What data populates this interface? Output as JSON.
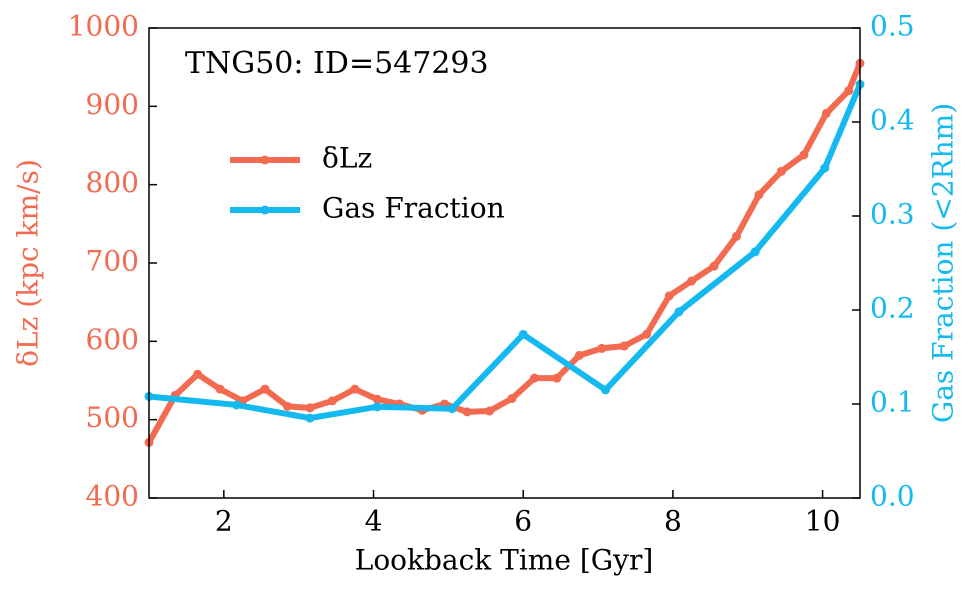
{
  "chart_data": {
    "type": "line",
    "annotation": "TNG50: ID=547293",
    "x_label": "Lookback Time [Gyr]",
    "y_label": "δLz (kpc km/s)",
    "y2_label": "Gas Fraction (<2Rhm)",
    "xlim": [
      1,
      10.5
    ],
    "xticks": [
      2,
      4,
      6,
      8,
      10
    ],
    "ylim": [
      400,
      1000
    ],
    "yticks": [
      400,
      500,
      600,
      700,
      800,
      900,
      1000
    ],
    "y2lim": [
      0,
      0.5
    ],
    "y2ticks": [
      {
        "value": 0,
        "label": "0.0"
      },
      0.1,
      0.2,
      0.3,
      0.4,
      0.5
    ],
    "y_color": "#f26b50",
    "y2_color": "#13b9ef",
    "series": [
      {
        "name": "δLz",
        "color": "#f26b50",
        "axis": "y",
        "x": [
          1.0,
          1.35,
          1.65,
          1.95,
          2.25,
          2.55,
          2.85,
          3.15,
          3.45,
          3.75,
          4.05,
          4.35,
          4.65,
          4.95,
          5.25,
          5.55,
          5.85,
          6.15,
          6.45,
          6.75,
          7.05,
          7.35,
          7.65,
          7.95,
          8.25,
          8.55,
          8.85,
          9.15,
          9.45,
          9.75,
          10.05,
          10.35,
          10.5
        ],
        "values": [
          471,
          531,
          558,
          539,
          524,
          539,
          517,
          515,
          524,
          539,
          526,
          520,
          512,
          520,
          510,
          511,
          527,
          553,
          553,
          582,
          591,
          594,
          609,
          658,
          677,
          696,
          734,
          787,
          817,
          838,
          891,
          920,
          955
        ]
      },
      {
        "name": "Gas Fraction",
        "color": "#13b9ef",
        "axis": "y2",
        "x": [
          1.0,
          2.17,
          3.15,
          4.05,
          5.05,
          6.0,
          7.1,
          8.08,
          9.1,
          10.03,
          10.5
        ],
        "values": [
          0.108,
          0.099,
          0.085,
          0.097,
          0.095,
          0.174,
          0.115,
          0.198,
          0.262,
          0.351,
          0.44
        ]
      }
    ]
  }
}
